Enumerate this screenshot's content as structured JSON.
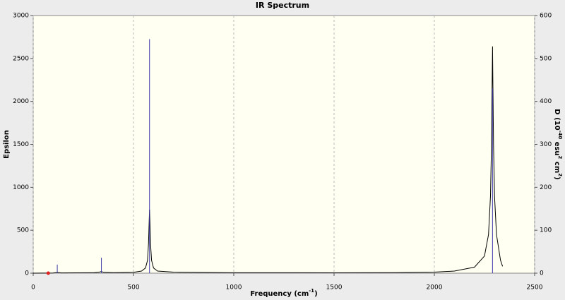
{
  "chart_data": {
    "type": "spectrum",
    "title": "IR Spectrum",
    "xlabel": [
      "Frequency (cm",
      "-1",
      ")"
    ],
    "ylabel": "Epsilon",
    "y2label": [
      "D (10",
      "-40",
      " esu",
      "2",
      " cm",
      "2",
      ")"
    ],
    "xlim": [
      0,
      2500
    ],
    "xticks": [
      0,
      500,
      1000,
      1500,
      2000,
      2500
    ],
    "ylim": [
      0,
      3000
    ],
    "yticks": [
      0,
      500,
      1000,
      1500,
      2000,
      2500,
      3000
    ],
    "y2lim": [
      0,
      600
    ],
    "y2ticks": [
      0,
      100,
      200,
      300,
      400,
      500,
      600
    ],
    "grid": true,
    "series": [
      {
        "kind": "curve",
        "color": "#000000",
        "x": [
          0,
          100,
          120,
          140,
          300,
          330,
          340,
          350,
          400,
          500,
          540,
          560,
          570,
          575,
          578,
          580,
          582,
          585,
          590,
          600,
          620,
          700,
          1000,
          1300,
          1500,
          1800,
          2000,
          2100,
          2200,
          2250,
          2270,
          2280,
          2285,
          2288,
          2290,
          2292,
          2295,
          2300,
          2310,
          2330,
          2340
        ],
        "values": [
          0,
          2,
          8,
          3,
          5,
          12,
          20,
          10,
          6,
          10,
          25,
          60,
          150,
          350,
          600,
          740,
          600,
          350,
          150,
          60,
          25,
          12,
          5,
          5,
          4,
          6,
          12,
          25,
          70,
          200,
          450,
          900,
          1500,
          2200,
          2640,
          2200,
          1500,
          900,
          450,
          150,
          80
        ]
      },
      {
        "kind": "sticks",
        "color": "#3a3aa8",
        "axis": "y2",
        "x": [
          120,
          340,
          580,
          2290
        ],
        "values": [
          20,
          36,
          545,
          430
        ]
      }
    ],
    "marker": {
      "x": 75,
      "y": 0,
      "color": "#e02020"
    }
  }
}
